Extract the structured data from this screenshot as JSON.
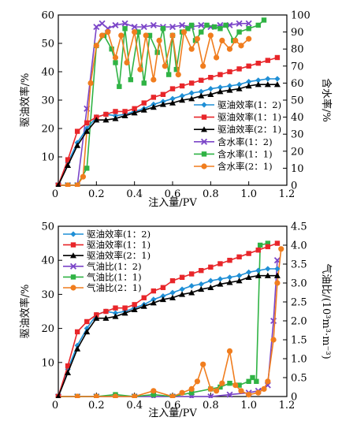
{
  "chart_data": [
    {
      "type": "line",
      "xlabel": "注入量/PV",
      "ylabel": "驱油效率/%",
      "y2label": "含水率/%",
      "xlim": [
        0,
        1.2
      ],
      "ylim": [
        0,
        60
      ],
      "y2lim": [
        0,
        100
      ],
      "xticks": [
        "0.2",
        "0.4",
        "0.6",
        "0.8",
        "1.0",
        "1.2"
      ],
      "yticks": [
        "0",
        "10",
        "20",
        "30",
        "40",
        "50",
        "60"
      ],
      "y2ticks": [
        "0",
        "10",
        "20",
        "30",
        "40",
        "50",
        "60",
        "70",
        "80",
        "90",
        "100"
      ],
      "origin_label": "0",
      "legend_position": "lower-right",
      "series": [
        {
          "name": "驱油效率(1：2)",
          "axis": "left",
          "color": "#1f8fd6",
          "marker": "diamond",
          "x": [
            0,
            0.05,
            0.1,
            0.15,
            0.2,
            0.25,
            0.3,
            0.35,
            0.4,
            0.45,
            0.5,
            0.55,
            0.6,
            0.65,
            0.7,
            0.75,
            0.8,
            0.85,
            0.9,
            0.95,
            1.0,
            1.05,
            1.1,
            1.15
          ],
          "y": [
            0,
            8,
            15,
            20,
            24,
            25,
            24.5,
            25,
            26,
            27,
            28.5,
            29.5,
            30.5,
            31.5,
            32.5,
            33,
            34,
            34.5,
            35,
            35.5,
            36.5,
            37,
            37.5,
            37.5
          ]
        },
        {
          "name": "驱油效率(1：1)",
          "axis": "left",
          "color": "#e8262a",
          "marker": "square",
          "x": [
            0,
            0.05,
            0.1,
            0.15,
            0.2,
            0.25,
            0.3,
            0.35,
            0.4,
            0.45,
            0.5,
            0.55,
            0.6,
            0.65,
            0.7,
            0.75,
            0.8,
            0.85,
            0.9,
            0.95,
            1.0,
            1.05,
            1.1,
            1.15
          ],
          "y": [
            0,
            9,
            19,
            22,
            24,
            25,
            26,
            26,
            27,
            29,
            31,
            32,
            34,
            35,
            36,
            37,
            38,
            39,
            40,
            41,
            42,
            43,
            44,
            45
          ]
        },
        {
          "name": "驱油效率(2：1)",
          "axis": "left",
          "color": "#000000",
          "marker": "triangle",
          "x": [
            0,
            0.05,
            0.1,
            0.15,
            0.2,
            0.25,
            0.3,
            0.35,
            0.4,
            0.45,
            0.5,
            0.55,
            0.6,
            0.65,
            0.7,
            0.75,
            0.8,
            0.85,
            0.9,
            0.95,
            1.0,
            1.05,
            1.1,
            1.15
          ],
          "y": [
            0,
            7,
            14,
            19,
            23,
            23,
            23.5,
            24.5,
            25.5,
            26.5,
            27.5,
            28.5,
            29,
            30,
            30.5,
            31.5,
            32,
            33,
            33.5,
            34,
            35,
            35.5,
            35.5,
            35.5
          ]
        },
        {
          "name": "含水率(1：2)",
          "axis": "right",
          "color": "#7b45c8",
          "marker": "cross",
          "x": [
            0,
            0.05,
            0.1,
            0.15,
            0.2,
            0.23,
            0.26,
            0.3,
            0.35,
            0.4,
            0.45,
            0.5,
            0.55,
            0.6,
            0.65,
            0.7,
            0.75,
            0.8,
            0.85,
            0.9,
            0.95,
            1.0
          ],
          "y": [
            0,
            0,
            0,
            45,
            93,
            95,
            92,
            94,
            95,
            93,
            93,
            94,
            93,
            93,
            94,
            93,
            94,
            93,
            94,
            94,
            95,
            95
          ]
        },
        {
          "name": "含水率(1：1)",
          "axis": "right",
          "color": "#2fb344",
          "marker": "square",
          "x": [
            0,
            0.05,
            0.1,
            0.15,
            0.2,
            0.24,
            0.28,
            0.3,
            0.32,
            0.35,
            0.38,
            0.42,
            0.45,
            0.48,
            0.52,
            0.55,
            0.58,
            0.6,
            0.62,
            0.65,
            0.68,
            0.7,
            0.72,
            0.75,
            0.78,
            0.82,
            0.85,
            0.88,
            0.92,
            0.95,
            1.0,
            1.05,
            1.08
          ],
          "y": [
            0,
            0,
            0,
            10,
            82,
            88,
            80,
            72,
            58,
            92,
            62,
            90,
            60,
            88,
            78,
            92,
            65,
            88,
            68,
            90,
            92,
            94,
            85,
            90,
            94,
            93,
            92,
            94,
            85,
            90,
            92,
            94,
            97
          ]
        },
        {
          "name": "含水率(2：1)",
          "axis": "right",
          "color": "#f07d1e",
          "marker": "circle",
          "x": [
            0,
            0.05,
            0.1,
            0.13,
            0.17,
            0.2,
            0.23,
            0.26,
            0.3,
            0.33,
            0.36,
            0.4,
            0.43,
            0.46,
            0.5,
            0.53,
            0.56,
            0.6,
            0.63,
            0.66,
            0.7,
            0.73,
            0.76,
            0.8,
            0.83,
            0.86,
            0.9,
            0.93,
            0.96,
            1.0
          ],
          "y": [
            0,
            0,
            0,
            5,
            60,
            82,
            88,
            90,
            75,
            88,
            72,
            90,
            68,
            88,
            62,
            85,
            70,
            88,
            65,
            90,
            80,
            86,
            70,
            88,
            75,
            85,
            80,
            85,
            82,
            86
          ]
        }
      ]
    },
    {
      "type": "line",
      "xlabel": "注入量/PV",
      "ylabel": "驱油效率/%",
      "y2label": "气油比/(10³m³·m⁻³)",
      "xlim": [
        0,
        1.2
      ],
      "ylim": [
        0,
        50
      ],
      "y2lim": [
        0,
        4.5
      ],
      "xticks": [
        "0.2",
        "0.4",
        "0.6",
        "0.8",
        "1.0",
        "1.2"
      ],
      "yticks": [
        "0",
        "10",
        "20",
        "30",
        "40",
        "50"
      ],
      "y2ticks": [
        "0",
        "0.5",
        "1.0",
        "1.5",
        "2.0",
        "2.5",
        "3.0",
        "3.5",
        "4.0",
        "4.5"
      ],
      "origin_label": "0",
      "legend_position": "upper-left",
      "series": [
        {
          "name": "驱油效率(1：2)",
          "axis": "left",
          "color": "#1f8fd6",
          "marker": "diamond",
          "x": [
            0,
            0.05,
            0.1,
            0.15,
            0.2,
            0.25,
            0.3,
            0.35,
            0.4,
            0.45,
            0.5,
            0.55,
            0.6,
            0.65,
            0.7,
            0.75,
            0.8,
            0.85,
            0.9,
            0.95,
            1.0,
            1.05,
            1.1,
            1.15
          ],
          "y": [
            0,
            8,
            15,
            20,
            24,
            25,
            24.5,
            25,
            26,
            27,
            28.5,
            29.5,
            30.5,
            31.5,
            32.5,
            33,
            34,
            34.5,
            35,
            35.5,
            36.5,
            37,
            37.5,
            37.5
          ]
        },
        {
          "name": "驱油效率(1：1)",
          "axis": "left",
          "color": "#e8262a",
          "marker": "square",
          "x": [
            0,
            0.05,
            0.1,
            0.15,
            0.2,
            0.25,
            0.3,
            0.35,
            0.4,
            0.45,
            0.5,
            0.55,
            0.6,
            0.65,
            0.7,
            0.75,
            0.8,
            0.85,
            0.9,
            0.95,
            1.0,
            1.05,
            1.1,
            1.15
          ],
          "y": [
            0,
            9,
            19,
            22,
            24,
            25,
            26,
            26,
            27,
            29,
            31,
            32,
            34,
            35,
            36,
            37,
            38,
            39,
            40,
            41,
            42,
            43,
            44,
            45
          ]
        },
        {
          "name": "驱油效率(2：1)",
          "axis": "left",
          "color": "#000000",
          "marker": "triangle",
          "x": [
            0,
            0.05,
            0.1,
            0.15,
            0.2,
            0.25,
            0.3,
            0.35,
            0.4,
            0.45,
            0.5,
            0.55,
            0.6,
            0.65,
            0.7,
            0.75,
            0.8,
            0.85,
            0.9,
            0.95,
            1.0,
            1.05,
            1.1,
            1.15
          ],
          "y": [
            0,
            7,
            14,
            19,
            23,
            23,
            23.5,
            24.5,
            25.5,
            26.5,
            27.5,
            28.5,
            29,
            30,
            30.5,
            31.5,
            32,
            33,
            33.5,
            34,
            35,
            35.5,
            35.5,
            35.5
          ]
        },
        {
          "name": "气油比(1：2)",
          "axis": "right",
          "color": "#7b45c8",
          "marker": "cross",
          "x": [
            0,
            0.1,
            0.2,
            0.3,
            0.4,
            0.5,
            0.6,
            0.7,
            0.8,
            0.9,
            1.0,
            1.05,
            1.1,
            1.13,
            1.15
          ],
          "y": [
            0,
            0,
            0,
            0,
            0,
            0,
            0,
            0,
            0,
            0.05,
            0.1,
            0.15,
            0.3,
            2.0,
            3.6
          ]
        },
        {
          "name": "气油比(1：1)",
          "axis": "right",
          "color": "#2fb344",
          "marker": "square",
          "x": [
            0,
            0.1,
            0.2,
            0.3,
            0.4,
            0.5,
            0.6,
            0.7,
            0.8,
            0.85,
            0.9,
            0.95,
            1.0,
            1.02,
            1.04,
            1.06,
            1.1
          ],
          "y": [
            0,
            0,
            0,
            0.05,
            0,
            0.05,
            0,
            0.1,
            0.2,
            0.25,
            0.35,
            0.3,
            0.4,
            0.5,
            0.4,
            4.0,
            4.05
          ]
        },
        {
          "name": "气油比(2：1)",
          "axis": "right",
          "color": "#f07d1e",
          "marker": "circle",
          "x": [
            0,
            0.1,
            0.2,
            0.3,
            0.4,
            0.5,
            0.6,
            0.65,
            0.7,
            0.73,
            0.76,
            0.8,
            0.83,
            0.86,
            0.9,
            0.93,
            0.96,
            1.0,
            1.05,
            1.08,
            1.1,
            1.13,
            1.15,
            1.17
          ],
          "y": [
            0,
            0,
            0,
            0,
            0,
            0.15,
            0,
            0.1,
            0.2,
            0.4,
            0.85,
            0.2,
            0.15,
            0.35,
            1.2,
            0.3,
            0.15,
            0.05,
            0.1,
            0.2,
            0.4,
            1.5,
            3.0,
            3.9
          ]
        }
      ]
    }
  ]
}
